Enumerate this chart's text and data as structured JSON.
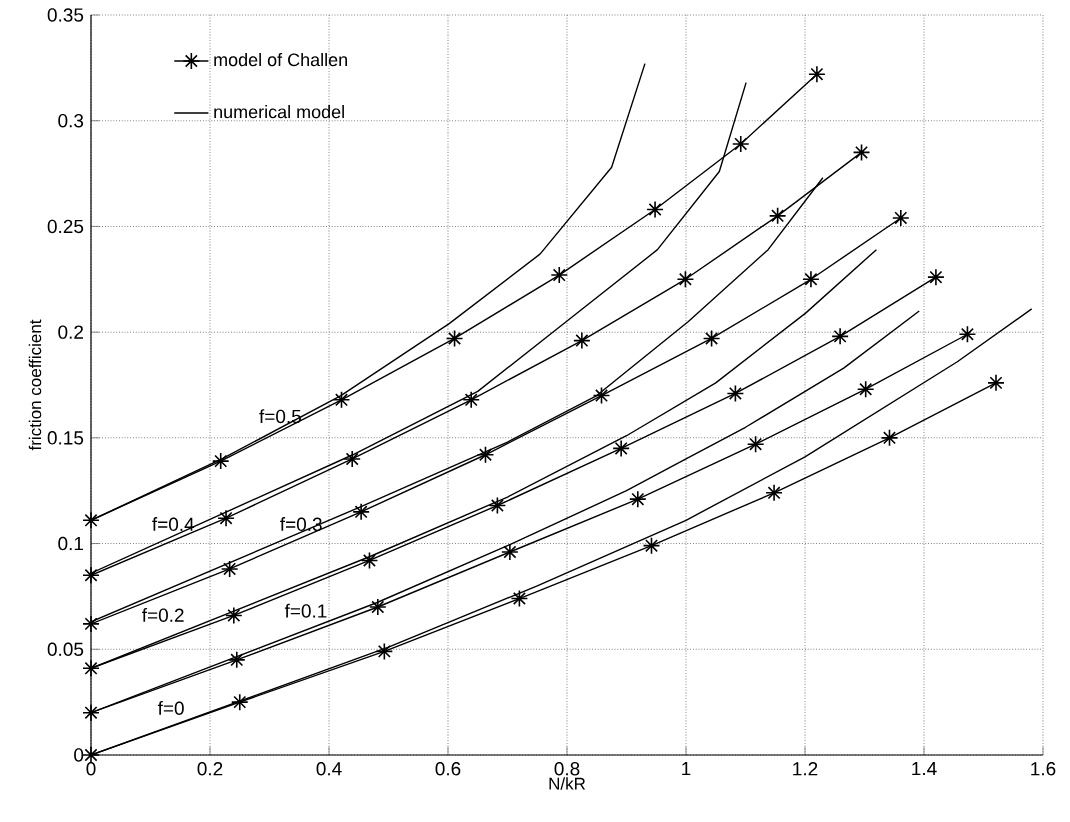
{
  "chart_data": {
    "type": "line",
    "xlabel": "N/kR",
    "ylabel": "friction coefficient",
    "xlim": [
      0,
      1.6
    ],
    "ylim": [
      0,
      0.35
    ],
    "xticks": [
      0,
      0.2,
      0.4,
      0.6,
      0.8,
      1,
      1.2,
      1.4,
      1.6
    ],
    "yticks": [
      0,
      0.05,
      0.1,
      0.15,
      0.2,
      0.25,
      0.3,
      0.35
    ],
    "grid": true,
    "legend": "top left",
    "series": [
      {
        "name": "model of Challen",
        "color": "#000000",
        "marker": "cross",
        "x": [
          0,
          0.25,
          0.493,
          0.72,
          0.942,
          1.148,
          1.342,
          1.521
        ],
        "values": [
          0,
          0.025,
          0.049,
          0.074,
          0.099,
          0.124,
          0.15,
          0.176
        ]
      },
      {
        "color": "#000000",
        "marker": "cross",
        "x": [
          0,
          0.245,
          0.482,
          0.704,
          0.919,
          1.117,
          1.302,
          1.473
        ],
        "values": [
          0.02,
          0.045,
          0.07,
          0.096,
          0.121,
          0.147,
          0.173,
          0.199
        ]
      },
      {
        "color": "#000000",
        "marker": "cross",
        "x": [
          0,
          0.24,
          0.468,
          0.683,
          0.891,
          1.083,
          1.259,
          1.42
        ],
        "values": [
          0.041,
          0.066,
          0.092,
          0.118,
          0.145,
          0.171,
          0.198,
          0.226
        ]
      },
      {
        "color": "#000000",
        "marker": "cross",
        "x": [
          0,
          0.233,
          0.454,
          0.663,
          0.858,
          1.043,
          1.21,
          1.361
        ],
        "values": [
          0.062,
          0.088,
          0.115,
          0.142,
          0.17,
          0.197,
          0.225,
          0.254
        ]
      },
      {
        "color": "#000000",
        "marker": "cross",
        "x": [
          0,
          0.227,
          0.439,
          0.639,
          0.825,
          0.999,
          1.154,
          1.295
        ],
        "values": [
          0.085,
          0.112,
          0.14,
          0.168,
          0.196,
          0.225,
          0.255,
          0.285
        ]
      },
      {
        "color": "#000000",
        "marker": "cross",
        "x": [
          0,
          0.218,
          0.421,
          0.611,
          0.787,
          0.948,
          1.092,
          1.22
        ],
        "values": [
          0.111,
          0.139,
          0.168,
          0.197,
          0.227,
          0.258,
          0.289,
          0.322
        ]
      },
      {
        "name": "numerical model",
        "color": "#000000",
        "marker": "none",
        "x": [
          0,
          0.5,
          0.75,
          1.0,
          1.2,
          1.456,
          1.581
        ],
        "values": [
          0,
          0.051,
          0.08,
          0.111,
          0.141,
          0.186,
          0.211
        ]
      },
      {
        "color": "#000000",
        "marker": "none",
        "x": [
          0,
          0.48,
          0.7,
          0.9,
          1.0,
          1.1,
          1.265,
          1.392
        ],
        "values": [
          0.02,
          0.072,
          0.099,
          0.125,
          0.14,
          0.155,
          0.183,
          0.21
        ]
      },
      {
        "color": "#000000",
        "marker": "none",
        "x": [
          0,
          0.47,
          0.7,
          0.9,
          1.05,
          1.201,
          1.32
        ],
        "values": [
          0.041,
          0.094,
          0.122,
          0.151,
          0.176,
          0.209,
          0.239
        ]
      },
      {
        "color": "#000000",
        "marker": "none",
        "x": [
          0,
          0.45,
          0.7,
          0.85,
          1.004,
          1.138,
          1.23
        ],
        "values": [
          0.063,
          0.117,
          0.148,
          0.17,
          0.205,
          0.239,
          0.273
        ]
      },
      {
        "color": "#000000",
        "marker": "none",
        "x": [
          0,
          0.44,
          0.65,
          0.799,
          0.952,
          1.056,
          1.101
        ],
        "values": [
          0.086,
          0.142,
          0.172,
          0.205,
          0.239,
          0.276,
          0.318
        ]
      },
      {
        "color": "#000000",
        "marker": "none",
        "x": [
          0,
          0.22,
          0.42,
          0.602,
          0.755,
          0.875,
          0.931
        ],
        "values": [
          0.111,
          0.14,
          0.17,
          0.204,
          0.237,
          0.278,
          0.327
        ]
      }
    ],
    "annotations": [
      {
        "text": "f=0.5",
        "x": 0.328,
        "y": 0.152
      },
      {
        "text": "f=0.4",
        "x": 0.148,
        "y": 0.101
      },
      {
        "text": "f=0.3",
        "x": 0.363,
        "y": 0.101
      },
      {
        "text": "f=0.2",
        "x": 0.131,
        "y": 0.058
      },
      {
        "text": "f=0.1",
        "x": 0.371,
        "y": 0.06
      },
      {
        "text": "f=0",
        "x": 0.131,
        "y": 0.014
      }
    ]
  }
}
